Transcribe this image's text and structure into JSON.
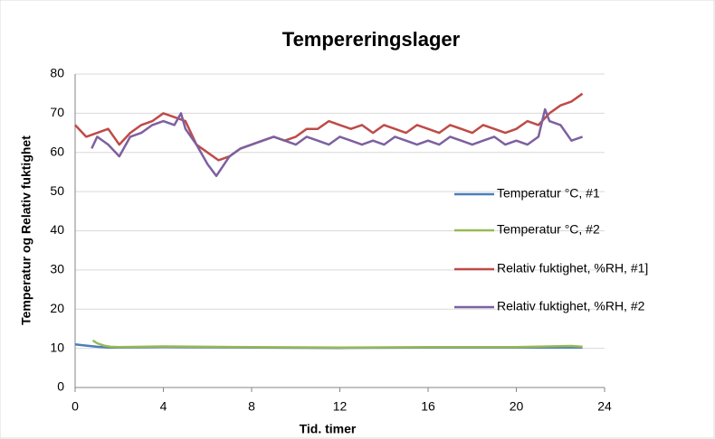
{
  "chart_data": {
    "type": "line",
    "title": "Tempereringslager",
    "xlabel": "Tid. timer",
    "ylabel": "Temperatur og Relativ fuktighet",
    "xlim": [
      0,
      24
    ],
    "xticks": [
      0,
      4,
      8,
      12,
      16,
      20,
      24
    ],
    "ylim": [
      0,
      80
    ],
    "yticks": [
      0,
      10,
      20,
      30,
      40,
      50,
      60,
      70,
      80
    ],
    "grid": true,
    "legend_position": "right",
    "series": [
      {
        "name": "Temperatur °C, #1",
        "color": "#4a7ebb",
        "x": [
          0,
          0.5,
          1,
          1.5,
          2,
          4,
          8,
          12,
          16,
          20,
          23
        ],
        "values": [
          11,
          10.7,
          10.4,
          10.2,
          10.2,
          10.3,
          10.2,
          10.1,
          10.2,
          10.2,
          10.2
        ]
      },
      {
        "name": "Temperatur °C, #2",
        "color": "#98b954",
        "x": [
          0.8,
          1,
          1.3,
          1.6,
          2,
          4,
          8,
          12,
          16,
          20,
          22.5,
          23
        ],
        "values": [
          12,
          11.3,
          10.7,
          10.4,
          10.3,
          10.5,
          10.3,
          10.2,
          10.3,
          10.3,
          10.6,
          10.4
        ]
      },
      {
        "name": "Relativ fuktighet, %RH, #1]",
        "color": "#be4b48",
        "x": [
          0,
          0.5,
          1,
          1.5,
          2,
          2.5,
          3,
          3.5,
          4,
          4.5,
          5,
          5.5,
          6,
          6.5,
          7,
          7.5,
          8,
          8.5,
          9,
          9.5,
          10,
          10.5,
          11,
          11.5,
          12,
          12.5,
          13,
          13.5,
          14,
          14.5,
          15,
          15.5,
          16,
          16.5,
          17,
          17.5,
          18,
          18.5,
          19,
          19.5,
          20,
          20.5,
          21,
          21.5,
          22,
          22.5,
          23
        ],
        "values": [
          67,
          64,
          65,
          66,
          62,
          65,
          67,
          68,
          70,
          69,
          68,
          62,
          60,
          58,
          59,
          61,
          62,
          63,
          64,
          63,
          64,
          66,
          66,
          68,
          67,
          66,
          67,
          65,
          67,
          66,
          65,
          67,
          66,
          65,
          67,
          66,
          65,
          67,
          66,
          65,
          66,
          68,
          67,
          70,
          72,
          73,
          75
        ]
      },
      {
        "name": "Relativ fuktighet, %RH, #2",
        "color": "#7d60a0",
        "x": [
          0.75,
          1,
          1.5,
          2,
          2.5,
          3,
          3.5,
          4,
          4.5,
          4.8,
          5,
          5.5,
          6,
          6.4,
          7,
          7.5,
          8,
          8.5,
          9,
          9.5,
          10,
          10.5,
          11,
          11.5,
          12,
          12.5,
          13,
          13.5,
          14,
          14.5,
          15,
          15.5,
          16,
          16.5,
          17,
          17.5,
          18,
          18.5,
          19,
          19.5,
          20,
          20.5,
          21,
          21.3,
          21.5,
          22,
          22.5,
          23
        ],
        "values": [
          61,
          64,
          62,
          59,
          64,
          65,
          67,
          68,
          67,
          70,
          66,
          62,
          57,
          54,
          59,
          61,
          62,
          63,
          64,
          63,
          62,
          64,
          63,
          62,
          64,
          63,
          62,
          63,
          62,
          64,
          63,
          62,
          63,
          62,
          64,
          63,
          62,
          63,
          64,
          62,
          63,
          62,
          64,
          71,
          68,
          67,
          63,
          64
        ]
      }
    ]
  }
}
